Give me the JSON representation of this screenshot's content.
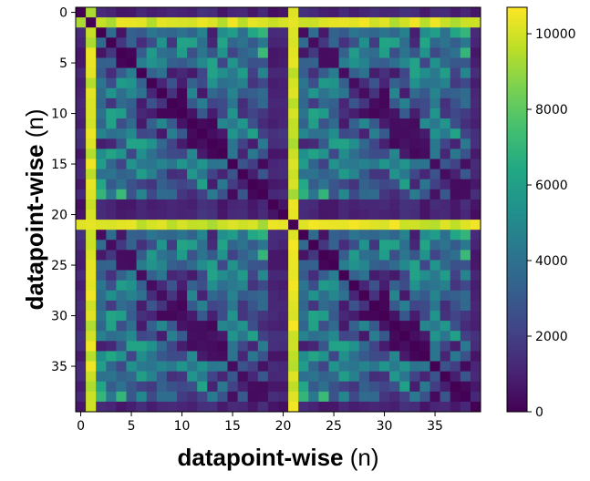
{
  "chart_data": {
    "type": "heatmap",
    "title": "",
    "xlabel_bold": "datapoint-wise",
    "xlabel_rest": " (n)",
    "ylabel_bold": "datapoint-wise",
    "ylabel_rest": " (n)",
    "n": 40,
    "xticks": [
      0,
      5,
      10,
      15,
      20,
      25,
      30,
      35
    ],
    "yticks": [
      0,
      5,
      10,
      15,
      20,
      25,
      30,
      35
    ],
    "colorbar": {
      "min": 0,
      "max": 10700,
      "ticks": [
        0,
        2000,
        4000,
        6000,
        8000,
        10000
      ],
      "colormap": "viridis"
    },
    "structure": "symmetric distance matrix, two repeated 20x20 blocks; zero diagonal; rows/columns 0, 19, 20, 39 dark; rows/columns 1, 21 bright (~10000)"
  }
}
